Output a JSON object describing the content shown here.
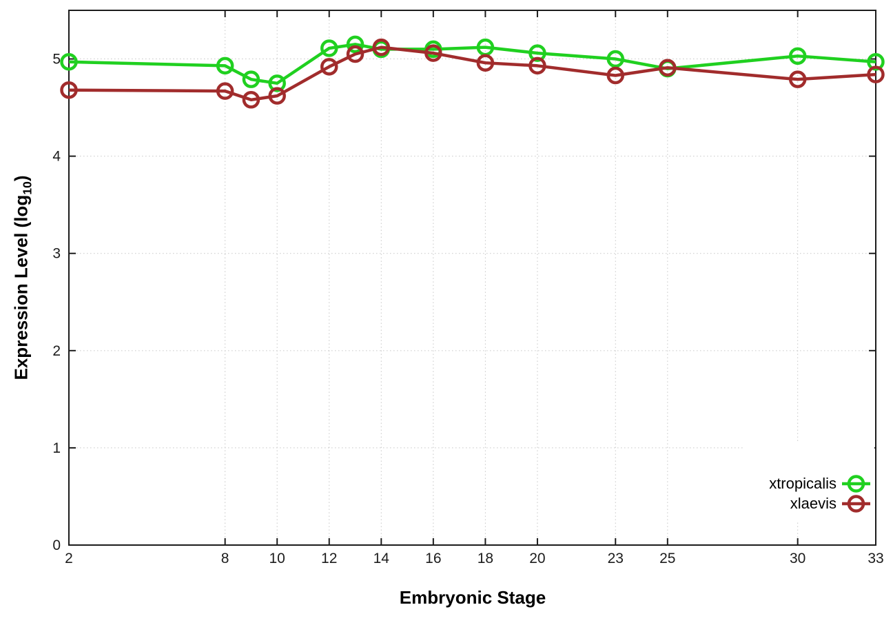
{
  "chart_data": {
    "type": "line",
    "title": "",
    "xlabel": "Embryonic Stage",
    "ylabel_prefix": "Expression Level (log",
    "ylabel_sub": "10",
    "ylabel_suffix": ")",
    "x": [
      2,
      8,
      9,
      10,
      12,
      13,
      14,
      16,
      18,
      20,
      23,
      25,
      30,
      33
    ],
    "xticks": [
      2,
      8,
      10,
      12,
      14,
      16,
      18,
      20,
      23,
      25,
      30,
      33
    ],
    "yticks": [
      0,
      1,
      2,
      3,
      4,
      5
    ],
    "xlim": [
      2,
      33
    ],
    "ylim": [
      0,
      5.5
    ],
    "grid": true,
    "legend_position": "inside-bottom-right",
    "legend_opaque": true,
    "series": [
      {
        "name": "xtropicalis",
        "color": "#20d020",
        "values": [
          4.97,
          4.93,
          4.79,
          4.75,
          5.11,
          5.15,
          5.1,
          5.1,
          5.12,
          5.06,
          5.0,
          4.9,
          5.03,
          4.97
        ]
      },
      {
        "name": "xlaevis",
        "color": "#a12c2c",
        "values": [
          4.68,
          4.67,
          4.58,
          4.62,
          4.92,
          5.05,
          5.12,
          5.06,
          4.96,
          4.93,
          4.83,
          4.91,
          4.79,
          4.84
        ]
      }
    ],
    "axis_color": "#1c1c1c",
    "grid_color": "#c6c6c6",
    "background": "#ffffff"
  }
}
